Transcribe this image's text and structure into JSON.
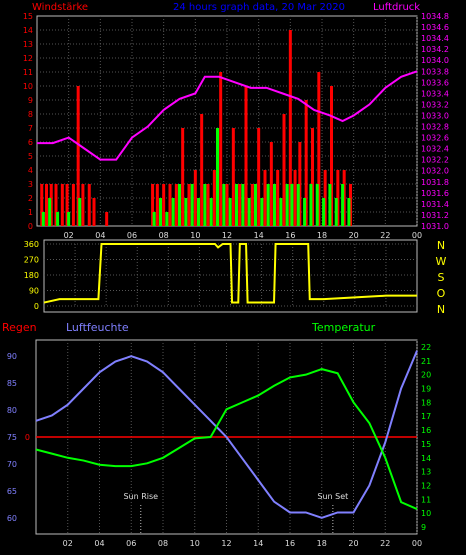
{
  "header": {
    "left": "Windstärke",
    "center": "24 hours graph data, 20 Mar 2020",
    "right": "Luftdruck"
  },
  "labels_mid": {
    "right": [
      "N",
      "W",
      "S",
      "O",
      "N"
    ]
  },
  "labels_bottom": {
    "regen": "Regen",
    "humidity": "Luftfeuchte",
    "temperature": "Temperatur",
    "sunrise": "Sun Rise",
    "sunset": "Sun Set"
  },
  "colors": {
    "wind_bar": "#ff0000",
    "gust_bar": "#00ff00",
    "pressure": "#ff00ff",
    "direction": "#ffff00",
    "humidity": "#8080ff",
    "temperature": "#00ff00",
    "rain": "#ff0000",
    "axis": "#bbbbbb",
    "title": "#0000ff"
  },
  "chart_data": [
    {
      "type": "bar",
      "title": "Windstärke",
      "xlabel": "",
      "ylabel": "Windstärke",
      "x_ticks": [
        "02",
        "04",
        "06",
        "08",
        "10",
        "12",
        "14",
        "16",
        "18",
        "20",
        "22",
        "00"
      ],
      "ylim": [
        0,
        15
      ],
      "y_ticks": [
        0,
        1,
        2,
        3,
        4,
        5,
        6,
        7,
        8,
        9,
        10,
        11,
        12,
        13,
        14,
        15
      ],
      "x_range_hours": [
        0,
        24
      ],
      "series": [
        {
          "name": "",
          "points": [
            [
              0.3,
              3
            ],
            [
              0.6,
              3
            ],
            [
              0.9,
              3
            ],
            [
              1.2,
              3
            ],
            [
              1.6,
              3
            ],
            [
              1.9,
              3
            ],
            [
              2.3,
              3
            ],
            [
              2.6,
              10
            ],
            [
              2.9,
              3
            ],
            [
              3.3,
              3
            ],
            [
              3.6,
              2
            ],
            [
              4.4,
              1
            ],
            [
              7.3,
              3
            ],
            [
              7.6,
              3
            ],
            [
              8.0,
              3
            ],
            [
              8.4,
              3
            ],
            [
              8.8,
              3
            ],
            [
              9.2,
              7
            ],
            [
              9.6,
              3
            ],
            [
              10.0,
              4
            ],
            [
              10.4,
              8
            ],
            [
              10.8,
              3
            ],
            [
              11.2,
              4
            ],
            [
              11.6,
              11
            ],
            [
              12.0,
              3
            ],
            [
              12.4,
              7
            ],
            [
              12.8,
              3
            ],
            [
              13.2,
              10
            ],
            [
              13.6,
              3
            ],
            [
              14.0,
              7
            ],
            [
              14.4,
              4
            ],
            [
              14.8,
              6
            ],
            [
              15.2,
              4
            ],
            [
              15.6,
              8
            ],
            [
              16.0,
              14
            ],
            [
              16.3,
              4
            ],
            [
              16.6,
              6
            ],
            [
              17.0,
              9
            ],
            [
              17.4,
              7
            ],
            [
              17.8,
              11
            ],
            [
              18.2,
              4
            ],
            [
              18.6,
              10
            ],
            [
              19.0,
              4
            ],
            [
              19.4,
              4
            ],
            [
              19.8,
              3
            ]
          ]
        },
        {
          "name": "",
          "points": [
            [
              0.4,
              1
            ],
            [
              0.8,
              2
            ],
            [
              1.3,
              1
            ],
            [
              2.0,
              1
            ],
            [
              2.7,
              2
            ],
            [
              7.4,
              1
            ],
            [
              7.8,
              2
            ],
            [
              8.2,
              1
            ],
            [
              8.6,
              2
            ],
            [
              9.0,
              3
            ],
            [
              9.4,
              2
            ],
            [
              9.8,
              3
            ],
            [
              10.2,
              2
            ],
            [
              10.6,
              3
            ],
            [
              11.0,
              2
            ],
            [
              11.4,
              7
            ],
            [
              11.8,
              3
            ],
            [
              12.2,
              2
            ],
            [
              12.6,
              3
            ],
            [
              13.0,
              3
            ],
            [
              13.4,
              2
            ],
            [
              13.8,
              3
            ],
            [
              14.2,
              2
            ],
            [
              14.6,
              3
            ],
            [
              15.0,
              3
            ],
            [
              15.4,
              2
            ],
            [
              15.8,
              3
            ],
            [
              16.1,
              3
            ],
            [
              16.5,
              3
            ],
            [
              16.9,
              2
            ],
            [
              17.3,
              3
            ],
            [
              17.7,
              3
            ],
            [
              18.1,
              2
            ],
            [
              18.5,
              3
            ],
            [
              18.9,
              2
            ],
            [
              19.3,
              3
            ],
            [
              19.7,
              2
            ]
          ]
        }
      ],
      "pressure_series": {
        "name": "",
        "ylim": [
          1031,
          1034.8
        ],
        "y_ticks": [
          1031,
          1031.2,
          1031.4,
          1031.6,
          1031.8,
          1032,
          1032.2,
          1032.4,
          1032.6,
          1032.8,
          1033,
          1033.2,
          1033.4,
          1033.6,
          1033.8,
          1034,
          1034.2,
          1034.4,
          1034.6,
          1034.8
        ],
        "points": [
          [
            0,
            1032.5
          ],
          [
            1,
            1032.5
          ],
          [
            2,
            1032.6
          ],
          [
            3,
            1032.4
          ],
          [
            4,
            1032.2
          ],
          [
            5,
            1032.2
          ],
          [
            6,
            1032.6
          ],
          [
            7,
            1032.8
          ],
          [
            8,
            1033.1
          ],
          [
            9,
            1033.3
          ],
          [
            10,
            1033.4
          ],
          [
            10.6,
            1033.7
          ],
          [
            11.5,
            1033.7
          ],
          [
            12.5,
            1033.6
          ],
          [
            13.5,
            1033.5
          ],
          [
            14.5,
            1033.5
          ],
          [
            15.5,
            1033.4
          ],
          [
            16.5,
            1033.3
          ],
          [
            17.5,
            1033.1
          ],
          [
            18.5,
            1033.0
          ],
          [
            19.3,
            1032.9
          ],
          [
            20,
            1033.0
          ],
          [
            21,
            1033.2
          ],
          [
            22,
            1033.5
          ],
          [
            23,
            1033.7
          ],
          [
            24,
            1033.8
          ]
        ]
      }
    },
    {
      "type": "line",
      "title": "",
      "xlabel": "",
      "ylabel": "",
      "ylim": [
        0,
        360
      ],
      "y_ticks": [
        0,
        90,
        180,
        270,
        360
      ],
      "x_range_hours": [
        0,
        24
      ],
      "series": [
        {
          "name": "",
          "points": [
            [
              0,
              20
            ],
            [
              1,
              40
            ],
            [
              2,
              40
            ],
            [
              3.5,
              40
            ],
            [
              3.7,
              360
            ],
            [
              6,
              360
            ],
            [
              10,
              360
            ],
            [
              11,
              360
            ],
            [
              11.2,
              340
            ],
            [
              11.5,
              360
            ],
            [
              12,
              360
            ],
            [
              12.1,
              20
            ],
            [
              12.5,
              20
            ],
            [
              12.6,
              360
            ],
            [
              13,
              360
            ],
            [
              13.1,
              20
            ],
            [
              14.8,
              20
            ],
            [
              14.9,
              360
            ],
            [
              17,
              360
            ],
            [
              17.1,
              40
            ],
            [
              18,
              40
            ],
            [
              22,
              60
            ],
            [
              24,
              60
            ]
          ]
        }
      ]
    },
    {
      "type": "line",
      "title": "",
      "xlabel": "",
      "ylabel": "Luftfeuchte",
      "x_ticks": [
        "02",
        "04",
        "06",
        "08",
        "10",
        "12",
        "14",
        "16",
        "18",
        "20",
        "22",
        "00"
      ],
      "ylim": [
        57,
        93
      ],
      "y_ticks": [
        60,
        65,
        70,
        75,
        80,
        85,
        90
      ],
      "x_range_hours": [
        0,
        24
      ],
      "series": [
        {
          "name": "Luftfeuchte",
          "points": [
            [
              0,
              78
            ],
            [
              1,
              79
            ],
            [
              2,
              81
            ],
            [
              3,
              84
            ],
            [
              4,
              87
            ],
            [
              5,
              89
            ],
            [
              6,
              90
            ],
            [
              7,
              89
            ],
            [
              8,
              87
            ],
            [
              9,
              84
            ],
            [
              10,
              81
            ],
            [
              11,
              78
            ],
            [
              12,
              75
            ],
            [
              13,
              71
            ],
            [
              14,
              67
            ],
            [
              15,
              63
            ],
            [
              16,
              61
            ],
            [
              17,
              61
            ],
            [
              18,
              60
            ],
            [
              19,
              61
            ],
            [
              20,
              61
            ],
            [
              21,
              66
            ],
            [
              22,
              74
            ],
            [
              23,
              84
            ],
            [
              24,
              91
            ]
          ]
        },
        {
          "name": "Temperatur",
          "y_axis": "right",
          "ylim": [
            8.5,
            22.5
          ],
          "y_ticks": [
            9,
            10,
            11,
            12,
            13,
            14,
            15,
            16,
            17,
            18,
            19,
            20,
            21,
            22
          ],
          "points": [
            [
              0,
              14.6
            ],
            [
              1,
              14.3
            ],
            [
              2,
              14.0
            ],
            [
              3,
              13.8
            ],
            [
              4,
              13.5
            ],
            [
              5,
              13.4
            ],
            [
              6,
              13.4
            ],
            [
              7,
              13.6
            ],
            [
              8,
              14.0
            ],
            [
              9,
              14.7
            ],
            [
              10,
              15.4
            ],
            [
              11,
              15.5
            ],
            [
              12,
              17.5
            ],
            [
              13,
              18.0
            ],
            [
              14,
              18.5
            ],
            [
              15,
              19.2
            ],
            [
              16,
              19.8
            ],
            [
              17,
              20.0
            ],
            [
              18,
              20.4
            ],
            [
              19,
              20.1
            ],
            [
              20,
              18.0
            ],
            [
              21,
              16.5
            ],
            [
              22,
              14.0
            ],
            [
              23,
              10.8
            ],
            [
              24,
              10.3
            ]
          ]
        }
      ],
      "rain": {
        "name": "Regen",
        "level_label": "0",
        "value": 0
      },
      "sunrise_hour": 6.6,
      "sunset_hour": 18.7
    }
  ]
}
